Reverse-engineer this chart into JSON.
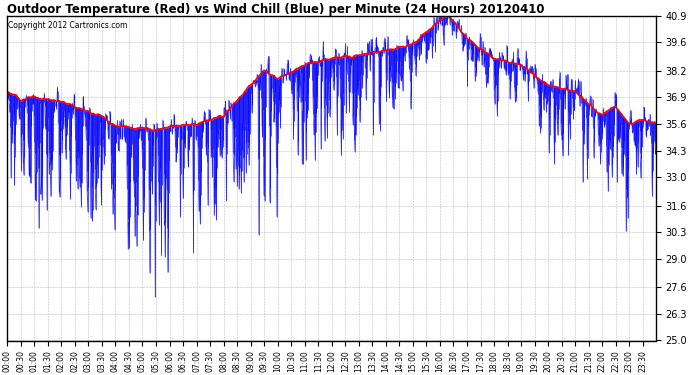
{
  "title": "Outdoor Temperature (Red) vs Wind Chill (Blue) per Minute (24 Hours) 20120410",
  "copyright": "Copyright 2012 Cartronics.com",
  "ylim": [
    25.0,
    40.9
  ],
  "yticks": [
    25.0,
    26.3,
    27.6,
    29.0,
    30.3,
    31.6,
    33.0,
    34.3,
    35.6,
    36.9,
    38.2,
    39.6,
    40.9
  ],
  "temp_color": "red",
  "wind_color": "blue",
  "bg_color": "#ffffff",
  "n_minutes": 1440,
  "temp_keypoints_t": [
    0,
    0.5,
    1,
    2,
    3,
    3.5,
    4,
    5,
    5.5,
    6,
    7,
    8,
    9,
    9.5,
    10,
    11,
    12,
    13,
    14,
    15,
    16,
    16.3,
    16.5,
    17,
    18,
    19,
    20,
    21,
    22,
    22.5,
    23,
    23.5,
    24
  ],
  "temp_keypoints_v": [
    37.2,
    36.8,
    36.9,
    36.7,
    36.2,
    36.0,
    35.5,
    35.4,
    35.3,
    35.5,
    35.6,
    36.0,
    37.5,
    38.2,
    37.8,
    38.5,
    38.8,
    39.0,
    39.2,
    39.5,
    40.7,
    40.9,
    40.7,
    39.8,
    38.8,
    38.5,
    37.5,
    37.2,
    36.0,
    36.5,
    35.6,
    35.8,
    35.6
  ]
}
